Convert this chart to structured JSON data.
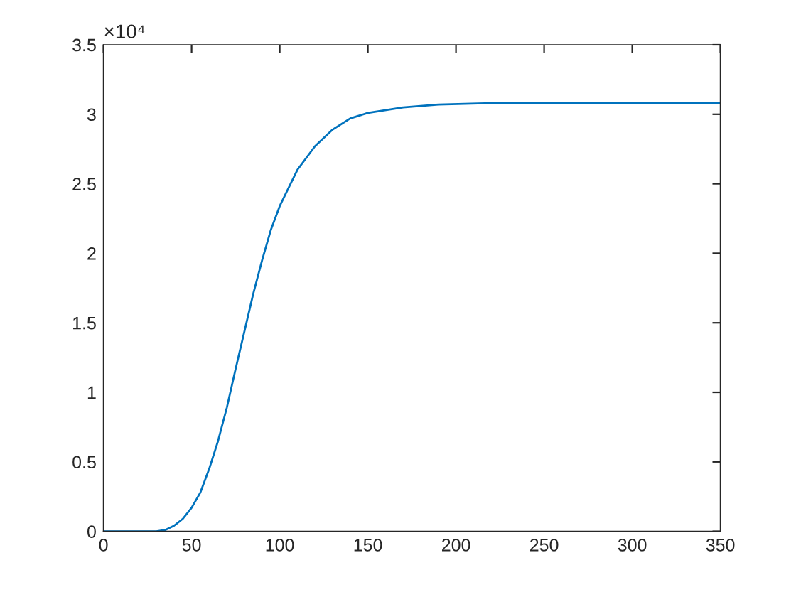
{
  "chart_data": {
    "type": "line",
    "x": [
      0,
      20,
      30,
      35,
      40,
      45,
      50,
      55,
      60,
      65,
      70,
      75,
      80,
      85,
      90,
      95,
      100,
      110,
      120,
      130,
      140,
      150,
      170,
      190,
      220,
      260,
      300,
      350
    ],
    "series": [
      {
        "color": "#0072bd",
        "values": [
          0,
          0,
          0,
          0.01,
          0.04,
          0.09,
          0.17,
          0.28,
          0.45,
          0.65,
          0.89,
          1.17,
          1.44,
          1.71,
          1.95,
          2.17,
          2.34,
          2.6,
          2.77,
          2.89,
          2.97,
          3.01,
          3.05,
          3.07,
          3.08,
          3.08,
          3.08,
          3.08
        ]
      }
    ],
    "xlim": [
      0,
      350
    ],
    "xticks": [
      0,
      50,
      100,
      150,
      200,
      250,
      300,
      350
    ],
    "ylim": [
      0,
      3.5
    ],
    "yticks": [
      0,
      0.5,
      1,
      1.5,
      2,
      2.5,
      3,
      3.5
    ],
    "annotations": [
      "×10⁴"
    ],
    "grid": false
  }
}
